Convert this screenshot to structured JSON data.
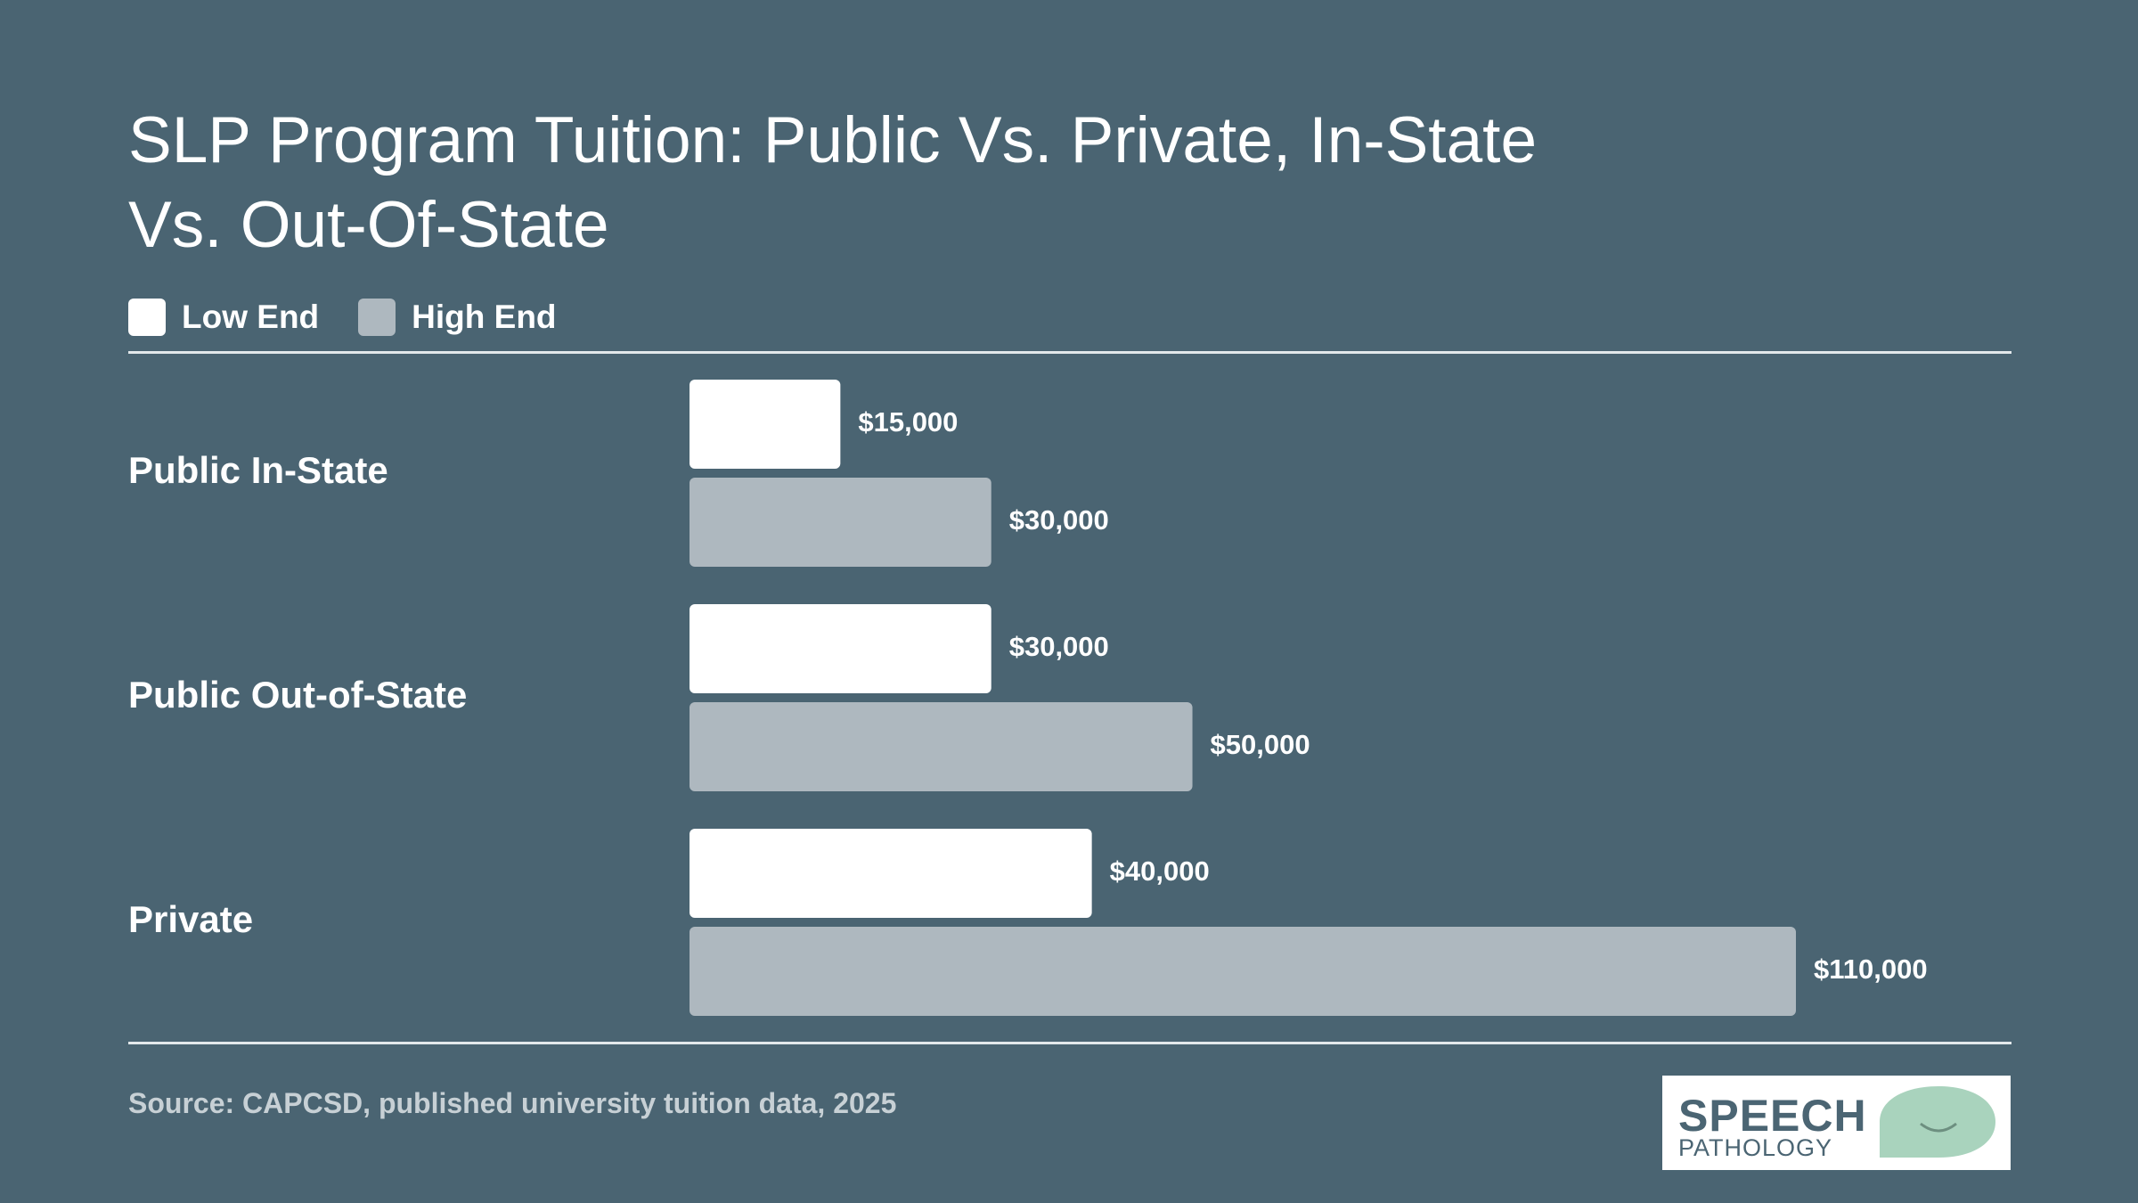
{
  "title": "SLP Program Tuition: Public Vs. Private, In-State Vs. Out-Of-State",
  "legend": [
    {
      "label": "Low End",
      "color": "#ffffff"
    },
    {
      "label": "High End",
      "color": "#aeb8bf"
    }
  ],
  "source": "Source: CAPCSD, published university tuition data, 2025",
  "logo": {
    "line1": "SPEECH",
    "line2": "PATHOLOGY",
    "accent": "#a9d3bd"
  },
  "colors": {
    "background": "#4a6472",
    "low": "#ffffff",
    "high": "#aeb8bf"
  },
  "chart_data": {
    "type": "bar",
    "orientation": "horizontal",
    "title": "SLP Program Tuition: Public Vs. Private, In-State Vs. Out-Of-State",
    "categories": [
      "Public In-State",
      "Public Out-of-State",
      "Private"
    ],
    "series": [
      {
        "name": "Low End",
        "values": [
          15000,
          30000,
          40000
        ],
        "labels": [
          "$15,000",
          "$30,000",
          "$40,000"
        ]
      },
      {
        "name": "High End",
        "values": [
          30000,
          50000,
          110000
        ],
        "labels": [
          "$30,000",
          "$50,000",
          "$110,000"
        ]
      }
    ],
    "xlim": [
      0,
      110000
    ],
    "grid": false,
    "legend_position": "top-left"
  }
}
